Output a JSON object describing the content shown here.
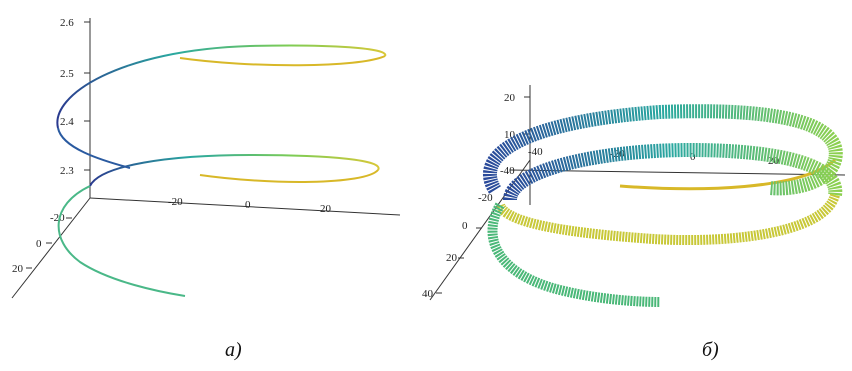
{
  "chart_data": [
    {
      "type": "line",
      "caption": "a)",
      "z_ticks": [
        "2.6",
        "2.5",
        "2.4",
        "2.3"
      ],
      "x_ticks": [
        "-20",
        "0",
        "20"
      ],
      "y_ticks": [
        "-20",
        "0",
        "20"
      ],
      "colors": [
        "#2a3a8f",
        "#2aa8a0",
        "#7ccc55",
        "#d8c838"
      ]
    },
    {
      "type": "scatter",
      "caption": "б)",
      "z_ticks": [
        "20",
        "10"
      ],
      "x_ticks": [
        "-40",
        "-20",
        "0",
        "20"
      ],
      "y_ticks": [
        "-40",
        "-20",
        "0",
        "20",
        "40"
      ],
      "colors": [
        "#2a3a8f",
        "#2aa8a0",
        "#7ccc55",
        "#d8c838"
      ]
    }
  ]
}
